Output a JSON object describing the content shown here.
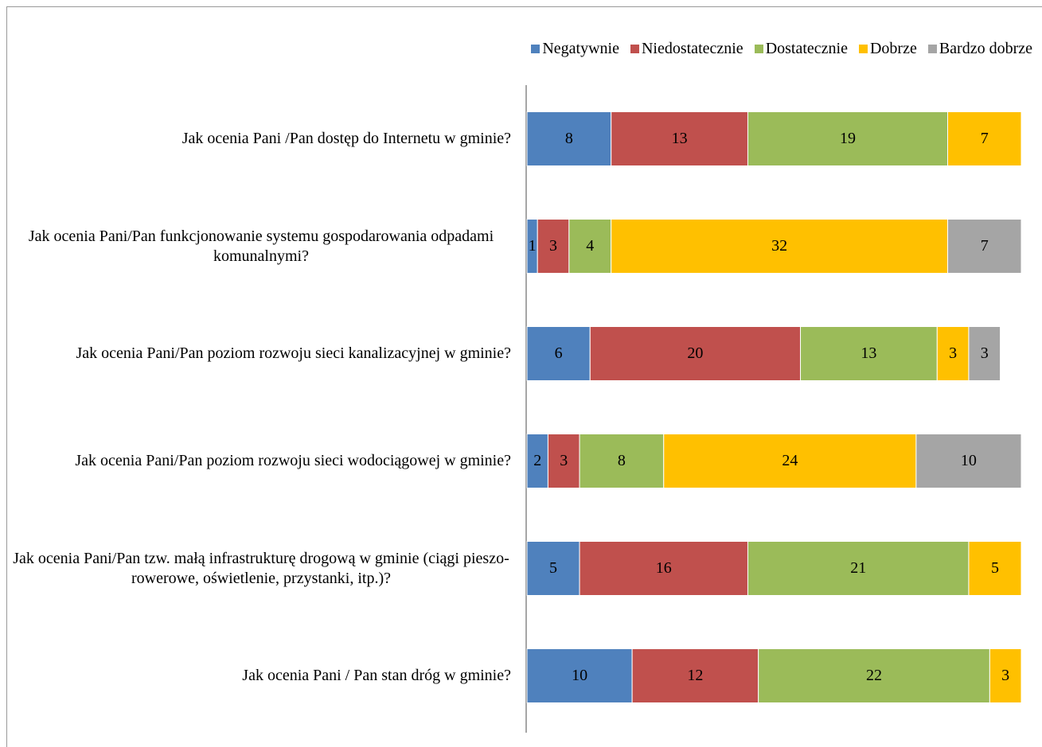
{
  "chart_data": {
    "type": "stacked-barh",
    "categories": [
      "Jak ocenia Pani /Pan dostęp do Internetu w gminie?",
      "Jak ocenia Pani/Pan funkcjonowanie systemu gospodarowania odpadami komunalnymi?",
      "Jak ocenia Pani/Pan poziom rozwoju sieci kanalizacyjnej w gminie?",
      "Jak ocenia Pani/Pan poziom rozwoju sieci wodociągowej w gminie?",
      "Jak ocenia Pani/Pan tzw. małą infrastrukturę drogową w gminie (ciągi pieszo-rowerowe, oświetlenie, przystanki, itp.)?",
      "Jak ocenia Pani / Pan stan dróg w gminie?"
    ],
    "series": [
      {
        "name": "Negatywnie",
        "color": "#4f81bd",
        "values": [
          8,
          1,
          6,
          2,
          5,
          10
        ]
      },
      {
        "name": "Niedostatecznie",
        "color": "#c0504d",
        "values": [
          13,
          3,
          20,
          3,
          16,
          12
        ]
      },
      {
        "name": "Dostatecznie",
        "color": "#9bbb59",
        "values": [
          19,
          4,
          13,
          8,
          21,
          22
        ]
      },
      {
        "name": "Dobrze",
        "color": "#ffc000",
        "values": [
          7,
          32,
          3,
          24,
          5,
          3
        ]
      },
      {
        "name": "Bardzo dobrze",
        "color": "#a5a5a5",
        "values": [
          null,
          7,
          3,
          10,
          null,
          null
        ]
      }
    ],
    "legend": "top"
  }
}
